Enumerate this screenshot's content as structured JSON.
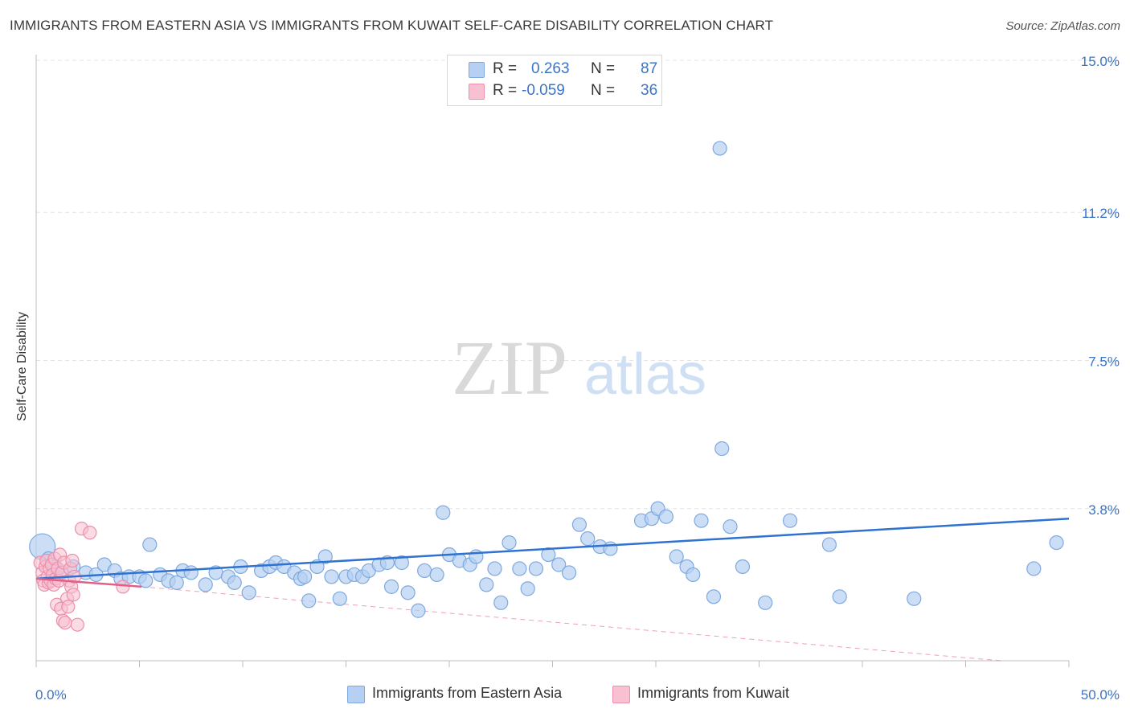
{
  "title": "IMMIGRANTS FROM EASTERN ASIA VS IMMIGRANTS FROM KUWAIT SELF-CARE DISABILITY CORRELATION CHART",
  "source": "Source: ZipAtlas.com",
  "watermark": {
    "zip": "ZIP",
    "atlas": "atlas"
  },
  "legend": {
    "r_label": "R =",
    "n_label": "N =",
    "rows": [
      {
        "r": "0.263",
        "n": "87"
      },
      {
        "r": "-0.059",
        "n": "36"
      }
    ]
  },
  "colors": {
    "blue_fill": "#b5d0f2",
    "blue_stroke": "#7ea9df",
    "blue_line": "#2f72cf",
    "pink_fill": "#f8c0d0",
    "pink_stroke": "#ec8fab",
    "pink_line": "#e0608a",
    "axis_text": "#3a74c8",
    "grid": "#e4e4e4"
  },
  "chart_data": {
    "type": "scatter",
    "xlabel": "",
    "ylabel": "Self-Care Disability",
    "xlim": [
      0,
      50
    ],
    "ylim": [
      0,
      15
    ],
    "x_tick_labels": [
      "0.0%",
      "50.0%"
    ],
    "y_ticks": [
      3.8,
      7.5,
      11.2,
      15.0
    ],
    "y_tick_labels": [
      "3.8%",
      "7.5%",
      "11.2%",
      "15.0%"
    ],
    "grid": true,
    "series": [
      {
        "name": "Immigrants from Eastern Asia",
        "color": "blue",
        "trend": {
          "x": [
            0,
            50
          ],
          "y": [
            2.05,
            3.55
          ]
        },
        "points": [
          {
            "x": 0.3,
            "y": 2.85,
            "big": true
          },
          {
            "x": 0.6,
            "y": 2.55
          },
          {
            "x": 0.9,
            "y": 2.35
          },
          {
            "x": 1.2,
            "y": 2.2
          },
          {
            "x": 1.8,
            "y": 2.35
          },
          {
            "x": 2.4,
            "y": 2.2
          },
          {
            "x": 2.9,
            "y": 2.15
          },
          {
            "x": 3.3,
            "y": 2.4
          },
          {
            "x": 3.8,
            "y": 2.25
          },
          {
            "x": 4.1,
            "y": 2.05
          },
          {
            "x": 4.5,
            "y": 2.1
          },
          {
            "x": 5.0,
            "y": 2.1
          },
          {
            "x": 5.3,
            "y": 2.0
          },
          {
            "x": 5.5,
            "y": 2.9
          },
          {
            "x": 6.0,
            "y": 2.15
          },
          {
            "x": 6.4,
            "y": 2.0
          },
          {
            "x": 6.8,
            "y": 1.95
          },
          {
            "x": 7.1,
            "y": 2.25
          },
          {
            "x": 7.5,
            "y": 2.2
          },
          {
            "x": 8.2,
            "y": 1.9
          },
          {
            "x": 8.7,
            "y": 2.2
          },
          {
            "x": 9.3,
            "y": 2.1
          },
          {
            "x": 9.6,
            "y": 1.95
          },
          {
            "x": 9.9,
            "y": 2.35
          },
          {
            "x": 10.3,
            "y": 1.7
          },
          {
            "x": 10.9,
            "y": 2.25
          },
          {
            "x": 11.3,
            "y": 2.35
          },
          {
            "x": 11.6,
            "y": 2.45
          },
          {
            "x": 12.0,
            "y": 2.35
          },
          {
            "x": 12.5,
            "y": 2.2
          },
          {
            "x": 12.8,
            "y": 2.05
          },
          {
            "x": 13.0,
            "y": 2.1
          },
          {
            "x": 13.2,
            "y": 1.5
          },
          {
            "x": 13.6,
            "y": 2.35
          },
          {
            "x": 14.0,
            "y": 2.6
          },
          {
            "x": 14.3,
            "y": 2.1
          },
          {
            "x": 14.7,
            "y": 1.55
          },
          {
            "x": 15.0,
            "y": 2.1
          },
          {
            "x": 15.4,
            "y": 2.15
          },
          {
            "x": 15.8,
            "y": 2.1
          },
          {
            "x": 16.1,
            "y": 2.25
          },
          {
            "x": 16.6,
            "y": 2.4
          },
          {
            "x": 17.0,
            "y": 2.45
          },
          {
            "x": 17.2,
            "y": 1.85
          },
          {
            "x": 17.7,
            "y": 2.45
          },
          {
            "x": 18.0,
            "y": 1.7
          },
          {
            "x": 18.5,
            "y": 1.25
          },
          {
            "x": 18.8,
            "y": 2.25
          },
          {
            "x": 19.4,
            "y": 2.15
          },
          {
            "x": 19.7,
            "y": 3.7
          },
          {
            "x": 20.0,
            "y": 2.65
          },
          {
            "x": 20.5,
            "y": 2.5
          },
          {
            "x": 21.0,
            "y": 2.4
          },
          {
            "x": 21.3,
            "y": 2.6
          },
          {
            "x": 21.8,
            "y": 1.9
          },
          {
            "x": 22.2,
            "y": 2.3
          },
          {
            "x": 22.5,
            "y": 1.45
          },
          {
            "x": 22.9,
            "y": 2.95
          },
          {
            "x": 23.4,
            "y": 2.3
          },
          {
            "x": 23.8,
            "y": 1.8
          },
          {
            "x": 24.2,
            "y": 2.3
          },
          {
            "x": 24.8,
            "y": 2.65
          },
          {
            "x": 25.3,
            "y": 2.4
          },
          {
            "x": 25.8,
            "y": 2.2
          },
          {
            "x": 26.3,
            "y": 3.4
          },
          {
            "x": 26.7,
            "y": 3.05
          },
          {
            "x": 27.3,
            "y": 2.85
          },
          {
            "x": 27.8,
            "y": 2.8
          },
          {
            "x": 29.3,
            "y": 3.5
          },
          {
            "x": 29.8,
            "y": 3.55
          },
          {
            "x": 30.1,
            "y": 3.8
          },
          {
            "x": 30.5,
            "y": 3.6
          },
          {
            "x": 31.0,
            "y": 2.6
          },
          {
            "x": 31.5,
            "y": 2.35
          },
          {
            "x": 31.8,
            "y": 2.15
          },
          {
            "x": 32.2,
            "y": 3.5
          },
          {
            "x": 32.8,
            "y": 1.6
          },
          {
            "x": 33.1,
            "y": 12.8
          },
          {
            "x": 33.2,
            "y": 5.3
          },
          {
            "x": 33.6,
            "y": 3.35
          },
          {
            "x": 34.2,
            "y": 2.35
          },
          {
            "x": 35.3,
            "y": 1.45
          },
          {
            "x": 36.5,
            "y": 3.5
          },
          {
            "x": 38.4,
            "y": 2.9
          },
          {
            "x": 38.9,
            "y": 1.6
          },
          {
            "x": 42.5,
            "y": 1.55
          },
          {
            "x": 48.3,
            "y": 2.3
          },
          {
            "x": 49.4,
            "y": 2.95
          }
        ]
      },
      {
        "name": "Immigrants from Kuwait",
        "color": "pink",
        "trend": {
          "x": [
            0,
            5.1
          ],
          "y": [
            2.05,
            1.85
          ]
        },
        "trend_ext": {
          "x": [
            5.1,
            46.7
          ],
          "y": [
            1.85,
            0
          ]
        },
        "points": [
          {
            "x": 0.2,
            "y": 2.45
          },
          {
            "x": 0.3,
            "y": 2.2
          },
          {
            "x": 0.35,
            "y": 2.0
          },
          {
            "x": 0.4,
            "y": 1.9
          },
          {
            "x": 0.45,
            "y": 2.35
          },
          {
            "x": 0.5,
            "y": 2.5
          },
          {
            "x": 0.55,
            "y": 2.1
          },
          {
            "x": 0.6,
            "y": 1.95
          },
          {
            "x": 0.65,
            "y": 2.3
          },
          {
            "x": 0.7,
            "y": 2.0
          },
          {
            "x": 0.75,
            "y": 2.4
          },
          {
            "x": 0.8,
            "y": 2.15
          },
          {
            "x": 0.85,
            "y": 1.9
          },
          {
            "x": 0.9,
            "y": 2.55
          },
          {
            "x": 0.95,
            "y": 2.05
          },
          {
            "x": 1.0,
            "y": 1.4
          },
          {
            "x": 1.05,
            "y": 2.3
          },
          {
            "x": 1.1,
            "y": 2.0
          },
          {
            "x": 1.15,
            "y": 2.65
          },
          {
            "x": 1.2,
            "y": 1.3
          },
          {
            "x": 1.25,
            "y": 2.2
          },
          {
            "x": 1.3,
            "y": 1.0
          },
          {
            "x": 1.35,
            "y": 2.45
          },
          {
            "x": 1.4,
            "y": 0.95
          },
          {
            "x": 1.5,
            "y": 1.55
          },
          {
            "x": 1.55,
            "y": 1.35
          },
          {
            "x": 1.6,
            "y": 2.0
          },
          {
            "x": 1.65,
            "y": 2.3
          },
          {
            "x": 1.7,
            "y": 1.85
          },
          {
            "x": 1.75,
            "y": 2.5
          },
          {
            "x": 1.8,
            "y": 1.65
          },
          {
            "x": 1.85,
            "y": 2.1
          },
          {
            "x": 2.0,
            "y": 0.9
          },
          {
            "x": 2.2,
            "y": 3.3
          },
          {
            "x": 2.6,
            "y": 3.2
          },
          {
            "x": 4.2,
            "y": 1.85
          }
        ]
      }
    ]
  }
}
